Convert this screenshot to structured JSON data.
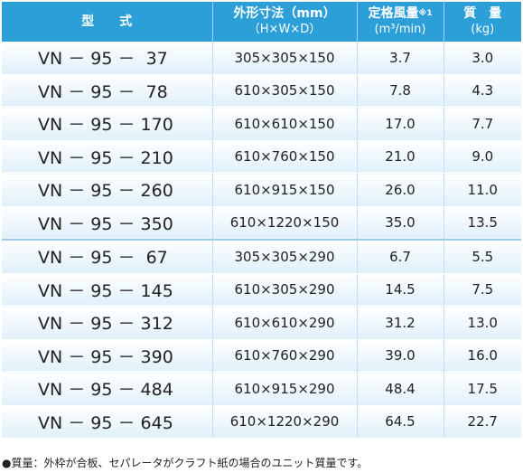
{
  "table": {
    "header": [
      [
        "型　　式"
      ],
      [
        "外形寸法（mm）",
        "（H×W×D）"
      ],
      [
        "定格風量",
        "※1",
        "(m³/min)"
      ],
      [
        "質　量",
        "(kg)"
      ]
    ],
    "rows": [
      [
        "VN － 95 －  37",
        "305×305×150",
        "3.7",
        "3.0"
      ],
      [
        "VN － 95 －  78",
        "610×305×150",
        "7.8",
        "4.3"
      ],
      [
        "VN － 95 － 170",
        "610×610×150",
        "17.0",
        "7.7"
      ],
      [
        "VN － 95 － 210",
        "610×760×150",
        "21.0",
        "9.0"
      ],
      [
        "VN － 95 － 260",
        "610×915×150",
        "26.0",
        "11.0"
      ],
      [
        "VN － 95 － 350",
        "610×1220×150",
        "35.0",
        "13.5"
      ],
      [
        "VN － 95 －  67",
        "305×305×290",
        "6.7",
        "5.5"
      ],
      [
        "VN － 95 － 145",
        "610×305×290",
        "14.5",
        "7.5"
      ],
      [
        "VN － 95 － 312",
        "610×610×290",
        "31.2",
        "13.0"
      ],
      [
        "VN － 95 － 390",
        "610×760×290",
        "39.0",
        "16.0"
      ],
      [
        "VN － 95 － 484",
        "610×915×290",
        "48.4",
        "17.5"
      ],
      [
        "VN － 95 － 645",
        "610×1220×290",
        "64.5",
        "22.7"
      ]
    ]
  },
  "footnote": "●質量：外枠が合板、セパレータがクラフト紙の場合のユニット質量です。"
}
